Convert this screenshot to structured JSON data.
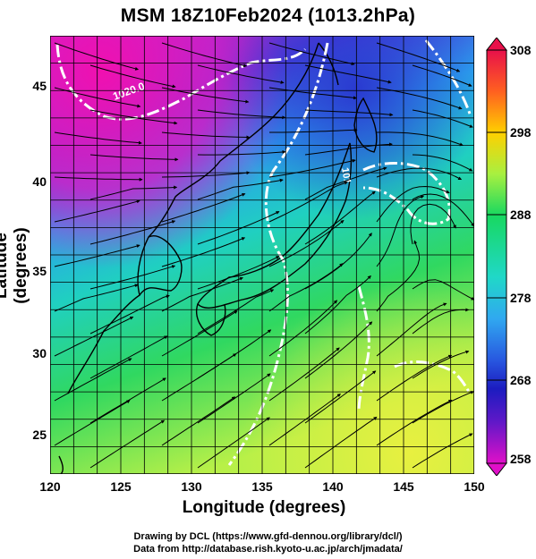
{
  "title": "MSM 18Z10Feb2024 (1013.2hPa)",
  "x_axis": {
    "label": "Longitude (degrees)",
    "ticks": [
      "120",
      "125",
      "130",
      "135",
      "140",
      "145",
      "150"
    ]
  },
  "y_axis": {
    "label": "Latitude  (degrees)",
    "ticks": [
      "25",
      "30",
      "35",
      "40",
      "45"
    ]
  },
  "colorbar": {
    "ticks": [
      "308",
      "298",
      "288",
      "278",
      "268",
      "258"
    ],
    "colors": [
      "#e8104a",
      "#ff6020",
      "#ffd000",
      "#a8f040",
      "#18d860",
      "#20d8c8",
      "#30a8f0",
      "#2858e0",
      "#1c1cc0",
      "#6018c8",
      "#e010c8"
    ]
  },
  "contour_label": "1020.0",
  "contour_label_2": "101",
  "credits": {
    "line1": "Drawing by DCL (https://www.gfd-dennou.org/library/dcl/)",
    "line2": "Data from http://database.rish.kyoto-u.ac.jp/arch/jmadata/"
  },
  "colors": {
    "cold": "#e018b8",
    "cool": "#2050e8",
    "mid": "#20c8e8",
    "warm": "#40d860",
    "hot": "#c8f040",
    "isobar": "#ffffff"
  }
}
